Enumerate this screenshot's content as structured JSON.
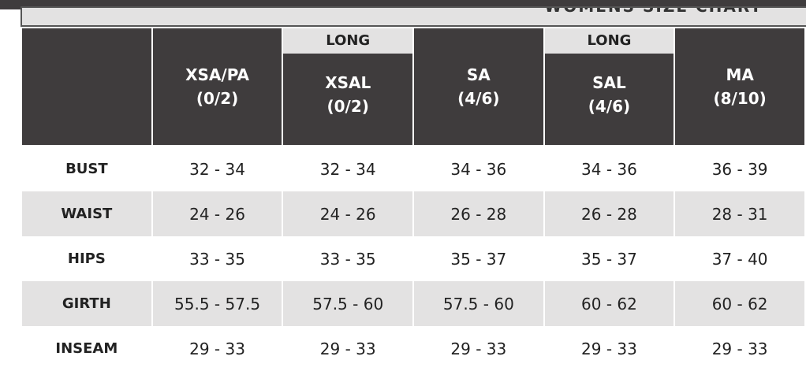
{
  "page_title": "WOMENS SIZE CHART",
  "columns": [
    {
      "long": "",
      "size": "XSA/PA",
      "numeric": "(0/2)"
    },
    {
      "long": "LONG",
      "size": "XSAL",
      "numeric": "(0/2)"
    },
    {
      "long": "",
      "size": "SA",
      "numeric": "(4/6)"
    },
    {
      "long": "LONG",
      "size": "SAL",
      "numeric": "(4/6)"
    },
    {
      "long": "",
      "size": "MA",
      "numeric": "(8/10)"
    }
  ],
  "rows": [
    {
      "label": "BUST",
      "values": [
        "32 - 34",
        "32 - 34",
        "34 - 36",
        "34 - 36",
        "36 - 39"
      ]
    },
    {
      "label": "WAIST",
      "values": [
        "24 - 26",
        "24 - 26",
        "26 - 28",
        "26 - 28",
        "28 - 31"
      ]
    },
    {
      "label": "HIPS",
      "values": [
        "33 - 35",
        "33 - 35",
        "35 - 37",
        "35 - 37",
        "37 - 40"
      ]
    },
    {
      "label": "GIRTH",
      "values": [
        "55.5 - 57.5",
        "57.5 - 60",
        "57.5 - 60",
        "60 - 62",
        "60 - 62"
      ]
    },
    {
      "label": "INSEAM",
      "values": [
        "29 - 33",
        "29 - 33",
        "29 - 33",
        "29 - 33",
        "29 - 33"
      ]
    }
  ],
  "colors": {
    "header_dark": "#3f3c3d",
    "row_shade": "#e3e2e2"
  }
}
